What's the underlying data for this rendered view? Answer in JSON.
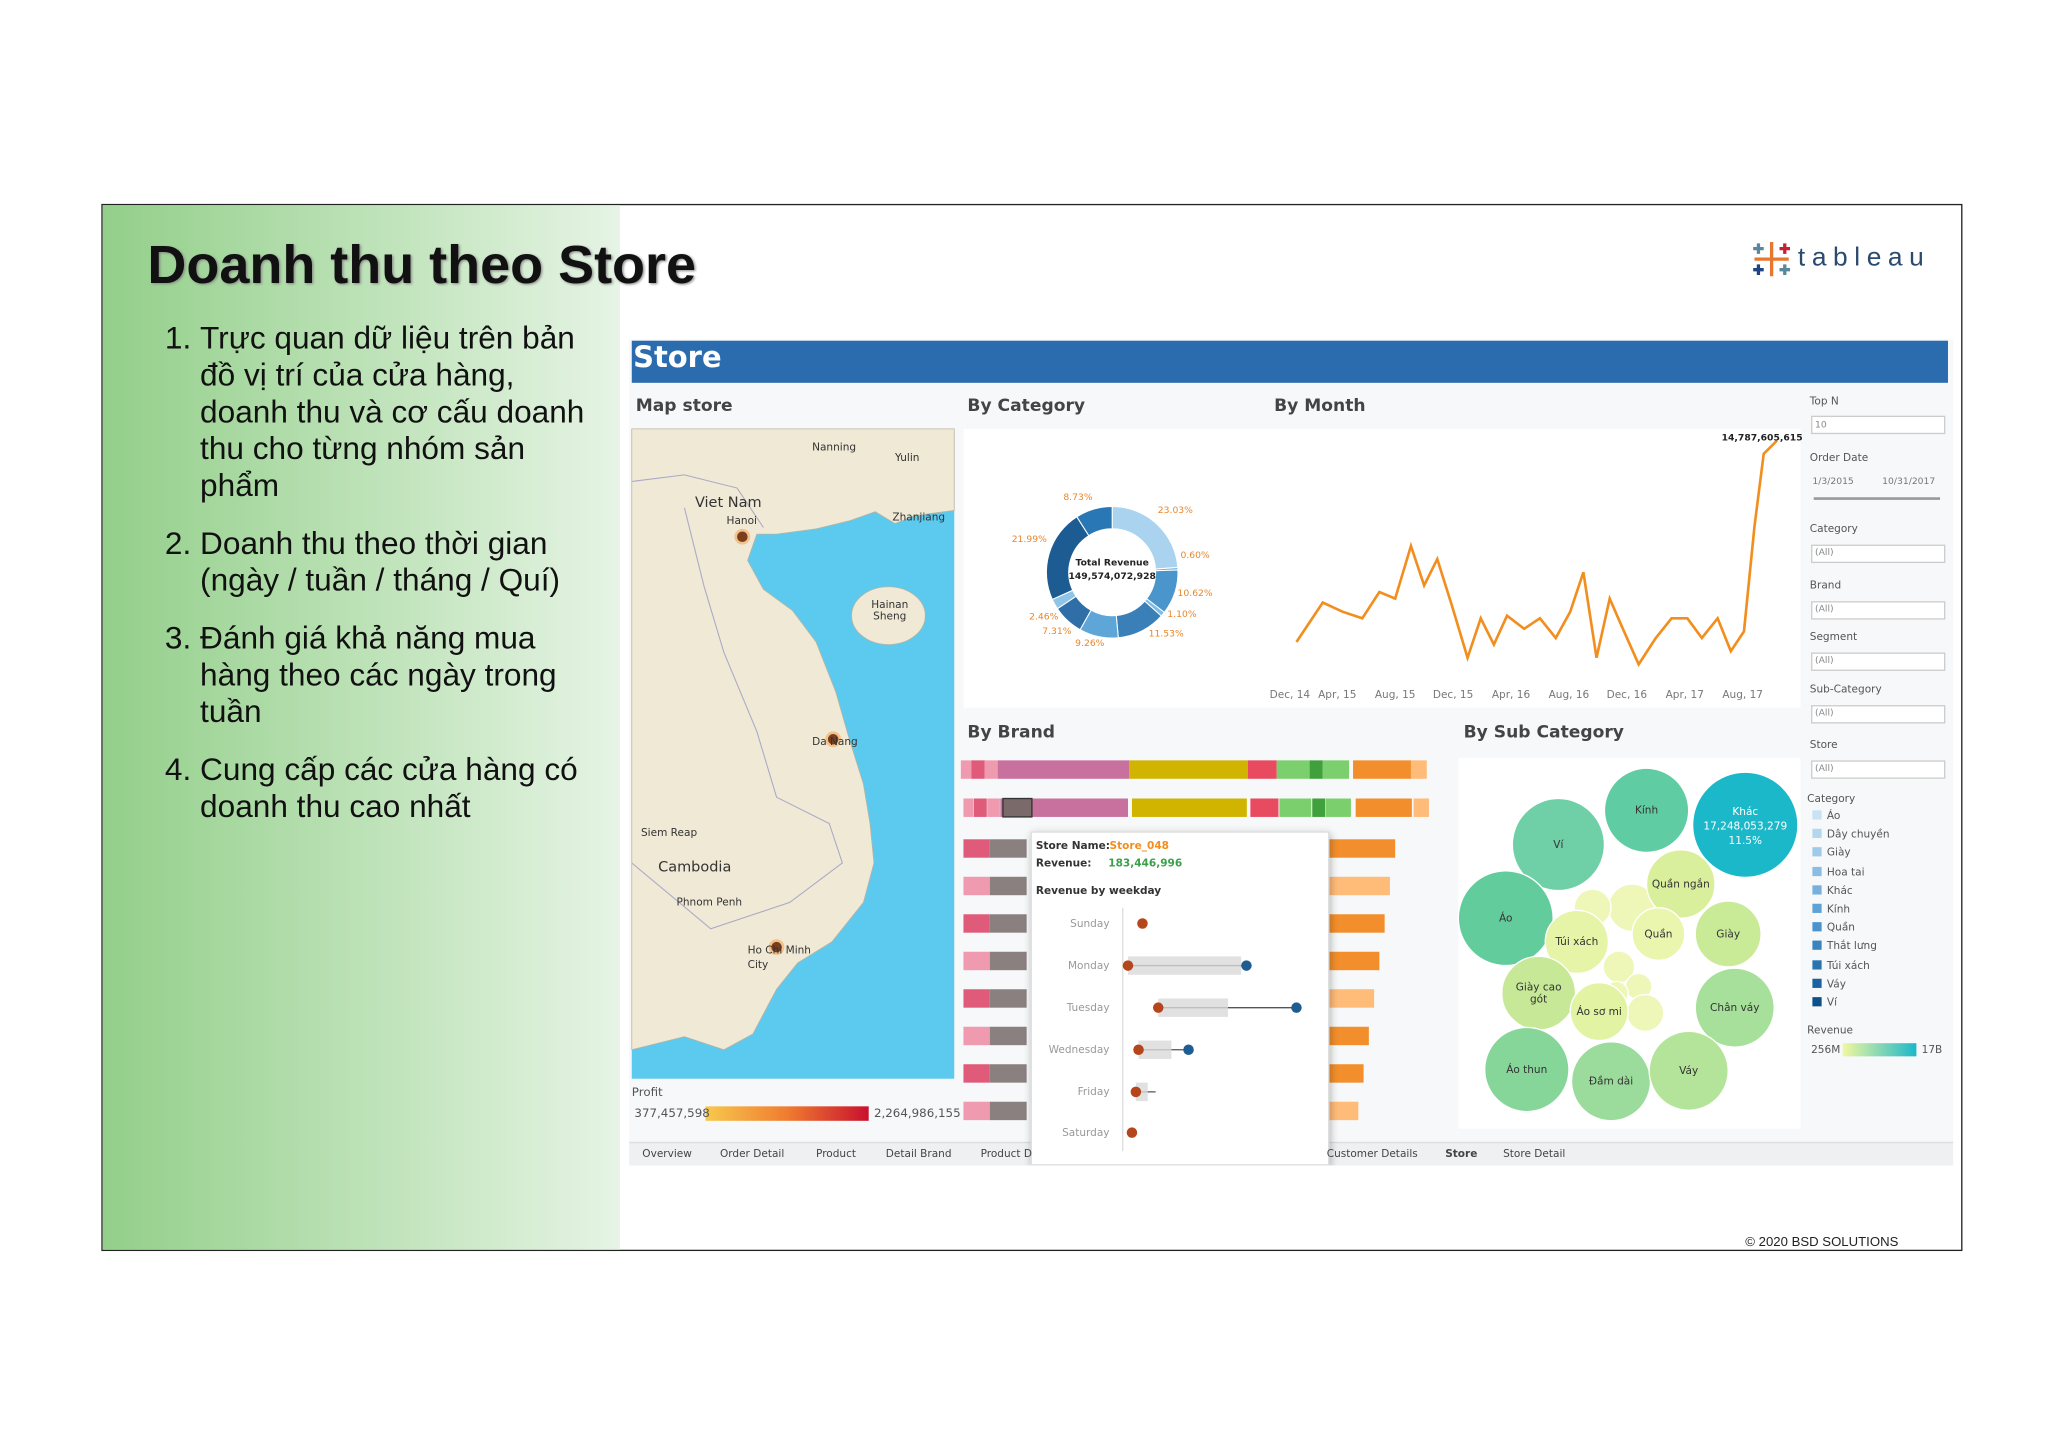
{
  "slide": {
    "title": "Doanh thu theo Store",
    "items": [
      "Trực quan dữ liệu trên bản đồ vị trí của cửa hàng, doanh thu và cơ cấu doanh thu cho từng nhóm sản phẩm",
      "Doanh thu theo thời gian (ngày / tuần / tháng / Quí)",
      "Đánh giá khả năng mua hàng theo các ngày trong tuần",
      "Cung cấp các cửa hàng có doanh thu cao nhất"
    ],
    "logo": "tableau",
    "footer": "© 2020 BSD SOLUTIONS"
  },
  "dashboard": {
    "header": "Store",
    "map": {
      "title": "Map store",
      "labels": [
        "Nanning",
        "Yulin",
        "Viet Nam",
        "Hanoi",
        "Zhanjiang",
        "Hainan Sheng",
        "Da Nang",
        "Siem Reap",
        "Cambodia",
        "Phnom Penh",
        "Ho Chi Minh City"
      ],
      "legend_title": "Profit",
      "legend_min": "377,457,598",
      "legend_max": "2,264,986,155"
    },
    "category": {
      "title": "By Category",
      "center_label": "Total Revenue",
      "center_value": "149,574,072,928",
      "slice_labels": [
        "23.03%",
        "0.60%",
        "10.62%",
        "1.10%",
        "11.53%",
        "9.26%",
        "7.31%",
        "2.46%",
        "21.99%",
        "8.73%"
      ]
    },
    "month": {
      "title": "By Month",
      "peak_label": "14,787,605,615",
      "x_labels": [
        "Dec, 14",
        "Apr, 15",
        "Aug, 15",
        "Dec, 15",
        "Apr, 16",
        "Aug, 16",
        "Dec, 16",
        "Apr, 17",
        "Aug, 17"
      ]
    },
    "brand": {
      "title": "By Brand",
      "tooltip": {
        "store_label": "Store Name:",
        "store": "Store_048",
        "revenue_label": "Revenue:",
        "revenue": "183,446,996",
        "subtitle": "Revenue by weekday",
        "days": [
          "Sunday",
          "Monday",
          "Tuesday",
          "Wednesday",
          "Friday",
          "Saturday"
        ]
      }
    },
    "subcategory": {
      "title": "By Sub Category",
      "bubbles": [
        "Kính",
        "Khác",
        "Ví",
        "Áo",
        "Quần ngắn",
        "Túi xách",
        "Quần",
        "Giày",
        "Giày cao gót",
        "Áo sơ mi",
        "Chân váy",
        "Áo thun",
        "Đầm dài",
        "Váy"
      ],
      "highlight_value": "17,248,053,279",
      "highlight_share": "11.5%"
    },
    "filters": {
      "top_n_label": "Top N",
      "top_n": "10",
      "order_date_label": "Order Date",
      "order_date_start": "1/3/2015",
      "order_date_end": "10/31/2017",
      "dropdowns": [
        {
          "label": "Category",
          "value": "(All)"
        },
        {
          "label": "Brand",
          "value": "(All)"
        },
        {
          "label": "Segment",
          "value": "(All)"
        },
        {
          "label": "Sub-Category",
          "value": "(All)"
        },
        {
          "label": "Store",
          "value": "(All)"
        }
      ],
      "legend_title": "Category",
      "legend_items": [
        "Áo",
        "Dây chuyền",
        "Giày",
        "Hoa tai",
        "Khác",
        "Kính",
        "Quần",
        "Thắt lưng",
        "Túi xách",
        "Váy",
        "Ví"
      ],
      "revenue_title": "Revenue",
      "revenue_min": "256M",
      "revenue_max": "17B"
    },
    "tabs": [
      "Overview",
      "Order Detail",
      "Product",
      "Detail Brand",
      "Product D",
      "Customer Details",
      "Store",
      "Store Detail"
    ]
  }
}
